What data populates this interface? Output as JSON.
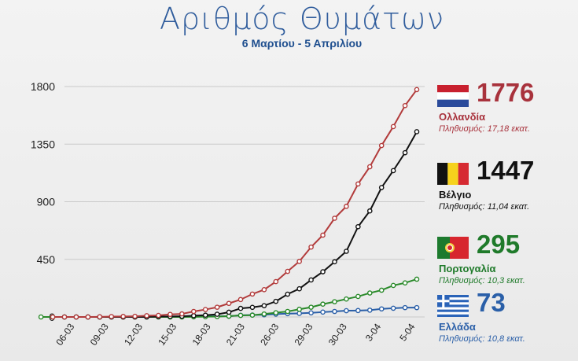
{
  "title": "Αριθμός Θυμάτων",
  "subtitle": "6 Μαρτίου - 5 Απριλίου",
  "chart_data": {
    "type": "line",
    "ylim": [
      0,
      1800
    ],
    "yticks": [
      "0",
      "450",
      "900",
      "1350",
      "1800"
    ],
    "xtick_labels": [
      "06-03",
      "09-03",
      "12-03",
      "15-03",
      "18-03",
      "21-03",
      "26-03",
      "29-03",
      "30-03",
      "3-04",
      "5-04"
    ],
    "grid": true,
    "series": [
      {
        "name": "Ολλανδία",
        "color": "#b23b3b",
        "values": [
          0,
          0,
          0,
          0,
          1,
          3,
          4,
          5,
          10,
          12,
          20,
          24,
          43,
          58,
          76,
          106,
          136,
          179,
          213,
          276,
          356,
          434,
          546,
          639,
          771,
          864,
          1039,
          1173,
          1339,
          1487,
          1651,
          1776
        ]
      },
      {
        "name": "Βέλγιο",
        "color": "#111111",
        "values": [
          0,
          0,
          0,
          0,
          0,
          0,
          0,
          0,
          3,
          4,
          5,
          10,
          14,
          21,
          37,
          67,
          75,
          88,
          122,
          178,
          220,
          289,
          353,
          431,
          513,
          705,
          828,
          1011,
          1143,
          1283,
          1447
        ]
      },
      {
        "name": "Πορτογαλία",
        "color": "#2a8a2a",
        "values": [
          0,
          0,
          0,
          0,
          0,
          0,
          0,
          0,
          0,
          0,
          0,
          0,
          0,
          1,
          2,
          3,
          6,
          12,
          14,
          23,
          33,
          43,
          60,
          76,
          100,
          119,
          140,
          160,
          187,
          209,
          246,
          266,
          295
        ]
      },
      {
        "name": "Ελλάδα",
        "color": "#2a5fa8",
        "values": [
          0,
          0,
          0,
          0,
          0,
          0,
          1,
          1,
          1,
          1,
          3,
          4,
          5,
          5,
          6,
          13,
          15,
          17,
          22,
          26,
          28,
          32,
          38,
          43,
          49,
          50,
          53,
          63,
          68,
          73,
          73
        ]
      }
    ]
  },
  "legend": [
    {
      "value": "1776",
      "country": "Ολλανδία",
      "pop": "Πληθυσμός: 17,18 εκατ.",
      "color": "#a8323c",
      "popcolor": "#a8323c",
      "flag": "netherlands-flag-icon"
    },
    {
      "value": "1447",
      "country": "Βέλγιο",
      "pop": "Πληθυσμός: 11,04 εκατ.",
      "color": "#111111",
      "popcolor": "#111111",
      "flag": "belgium-flag-icon"
    },
    {
      "value": "295",
      "country": "Πορτογαλία",
      "pop": "Πληθυσμός: 10,3 εκατ.",
      "color": "#1f7a2a",
      "popcolor": "#1f7a2a",
      "flag": "portugal-flag-icon"
    },
    {
      "value": "73",
      "country": "Ελλάδα",
      "pop": "Πληθυσμός: 10,8 εκατ.",
      "color": "#2a5fa8",
      "popcolor": "#2a5fa8",
      "flag": "greece-flag-icon"
    }
  ]
}
